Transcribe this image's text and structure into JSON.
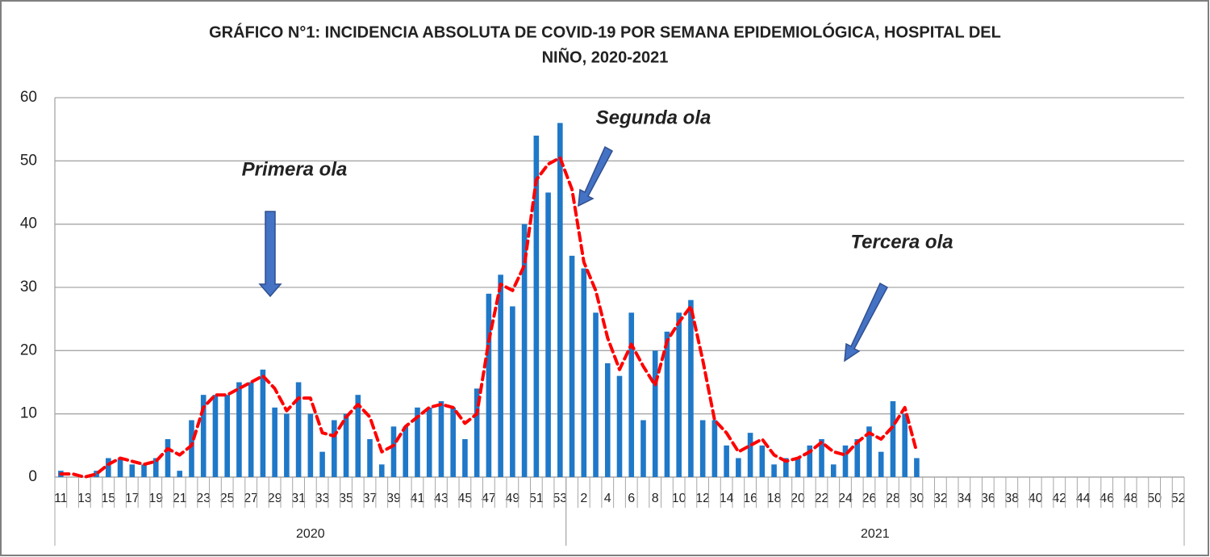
{
  "chart_data": {
    "type": "bar",
    "title": [
      "GRÁFICO N°1: INCIDENCIA ABSOLUTA DE COVID-19 POR SEMANA EPIDEMIOLÓGICA, HOSPITAL DEL",
      "NIÑO, 2020-2021"
    ],
    "category_groups": [
      {
        "label": "2020",
        "categories": [
          "11",
          null,
          "13",
          null,
          "15",
          null,
          "17",
          null,
          "19",
          null,
          "21",
          null,
          "23",
          null,
          "25",
          null,
          "27",
          null,
          "29",
          null,
          "31",
          null,
          "33",
          null,
          "35",
          null,
          "37",
          null,
          "39",
          null,
          "41",
          null,
          "43",
          null,
          "45",
          null,
          "47",
          null,
          "49",
          null,
          "51",
          null,
          "53"
        ]
      },
      {
        "label": "2021",
        "categories": [
          null,
          "2",
          null,
          "4",
          null,
          "6",
          null,
          "8",
          null,
          "10",
          null,
          "12",
          null,
          "14",
          null,
          "16",
          null,
          "18",
          null,
          "20",
          null,
          "22",
          null,
          "24",
          null,
          "26",
          null,
          "28",
          null,
          "30",
          null,
          "32",
          null,
          "34",
          null,
          "36",
          null,
          "38",
          null,
          "40",
          null,
          "42",
          null,
          "44",
          null,
          "46",
          null,
          "48",
          null,
          "50",
          null,
          "52"
        ]
      }
    ],
    "values": [
      1,
      0,
      0,
      1,
      3,
      3,
      2,
      2,
      3,
      6,
      1,
      9,
      13,
      13,
      13,
      15,
      15,
      17,
      11,
      10,
      15,
      10,
      4,
      9,
      10,
      13,
      6,
      2,
      8,
      8,
      11,
      11,
      12,
      11,
      6,
      14,
      29,
      32,
      27,
      40,
      54,
      45,
      56,
      35,
      33,
      26,
      18,
      16,
      26,
      9,
      20,
      23,
      26,
      28,
      9,
      9,
      5,
      3,
      7,
      5,
      2,
      3,
      3,
      5,
      6,
      2,
      5,
      6,
      8,
      4,
      12,
      10,
      3,
      null,
      null,
      null,
      null,
      null,
      null,
      null,
      null,
      null,
      null,
      null,
      null,
      null,
      null,
      null,
      null,
      null,
      null,
      null,
      null,
      null,
      null
    ],
    "color": "#1f78c8",
    "trend": {
      "color": "#ff0000",
      "values": [
        0.5,
        0.5,
        0,
        0.5,
        2,
        3,
        2.5,
        2,
        2.5,
        4.5,
        3.5,
        5,
        11,
        13,
        13,
        14,
        15,
        16,
        14,
        10.5,
        12.5,
        12.5,
        7,
        6.5,
        9.5,
        11.5,
        9.5,
        4,
        5,
        8,
        9.5,
        11,
        11.5,
        11,
        8.5,
        10,
        21.5,
        30.5,
        29.5,
        33.5,
        47,
        49.5,
        50.5,
        45.5,
        34,
        29.5,
        22,
        17,
        21,
        17.5,
        14.5,
        21.5,
        24.5,
        27,
        18.5,
        9,
        7,
        4,
        5,
        6,
        3.5,
        2.5,
        3,
        4,
        5.5,
        4,
        3.5,
        5.5,
        7,
        6,
        8,
        11,
        4,
        null,
        null,
        null,
        null,
        null,
        null,
        null,
        null,
        null,
        null,
        null,
        null,
        null,
        null,
        null,
        null,
        null,
        null,
        null,
        null,
        null,
        null
      ]
    },
    "ylim": [
      0,
      60
    ],
    "yticks": [
      0,
      10,
      20,
      30,
      40,
      50,
      60
    ],
    "grid": true,
    "annotations": [
      "Primera ola",
      "Segunda ola",
      "Tercera ola"
    ]
  }
}
